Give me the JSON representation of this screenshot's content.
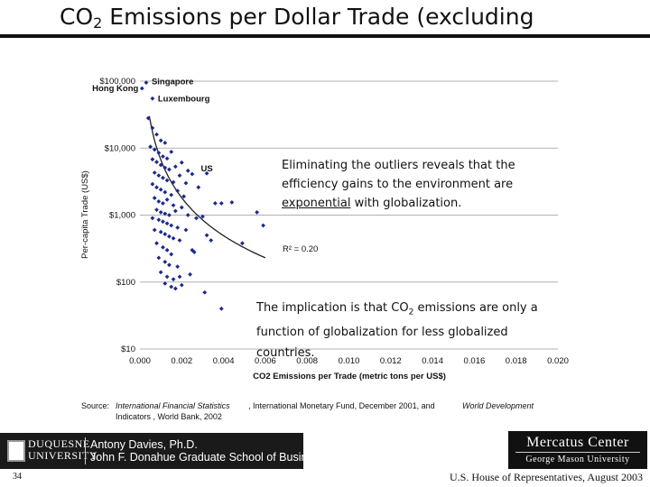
{
  "slide": {
    "title_prefix": "CO",
    "title_sub": "2",
    "title_rest": " Emissions per Dollar Trade (excluding",
    "callout1_line1": "Eliminating the outliers reveals that the",
    "callout1_line2": "efficiency gains to the environment are",
    "callout1_exp": "exponential",
    "callout1_end": " with globalization.",
    "callout2_part1": "The implication is that CO",
    "callout2_sub": "2",
    "callout2_part2": " emissions are only a",
    "callout2_line2": "function of globalization for less globalized",
    "callout2_line3": "countries.",
    "source_label": "Source:",
    "source_1": "International Financial Statistics",
    "source_2": "Indicators , World Bank, 2002",
    "source_3": ", International Monetary Fund, December 2001, and",
    "source_4": "World Development",
    "logo_left_uni1": "DUQUESNE",
    "logo_left_uni2": "UNIVERSITY",
    "logo_left_name1": "Antony Davies, Ph.D.",
    "logo_left_name2": "John F. Donahue Graduate School of Business",
    "logo_right_1": "Mercatus Center",
    "logo_right_2": "George Mason University",
    "page_number": "34",
    "footer_right": "U.S. House of Representatives, August 2003"
  },
  "chart_data": {
    "type": "scatter",
    "xlabel": "CO2 Emissions per Trade (metric tons per US$)",
    "ylabel": "Per-capita Trade (US$)",
    "x_ticks": [
      "0.000",
      "0.002",
      "0.004",
      "0.006",
      "0.008",
      "0.010",
      "0.012",
      "0.014",
      "0.016",
      "0.018",
      "0.020"
    ],
    "y_ticks": [
      "$100,000",
      "$10,000",
      "$1,000",
      "$100",
      "$10"
    ],
    "xlim": [
      0,
      0.02
    ],
    "ylim": [
      10,
      100000
    ],
    "y_scale": "log",
    "grid": "horizontal",
    "r_squared_label": "R² = 0.20",
    "annotations": [
      {
        "label": "Singapore",
        "x": 0.0003,
        "y": 95000
      },
      {
        "label": "Hong Kong",
        "x": 0.0001,
        "y": 78000
      },
      {
        "label": "Luxembourg",
        "x": 0.0006,
        "y": 55000
      },
      {
        "label": "US",
        "x": 0.0032,
        "y": 4200
      }
    ],
    "trendline": {
      "type": "power",
      "x_start": 0.00045,
      "x_end": 0.006
    },
    "points": [
      [
        0.0003,
        95000
      ],
      [
        0.0001,
        78000
      ],
      [
        0.0006,
        55000
      ],
      [
        0.0004,
        28000
      ],
      [
        0.0006,
        20000
      ],
      [
        0.0008,
        16000
      ],
      [
        0.001,
        13000
      ],
      [
        0.0012,
        12000
      ],
      [
        0.0005,
        10500
      ],
      [
        0.0007,
        9500
      ],
      [
        0.0009,
        8500
      ],
      [
        0.0011,
        7500
      ],
      [
        0.0013,
        7000
      ],
      [
        0.0015,
        8800
      ],
      [
        0.0006,
        6800
      ],
      [
        0.0008,
        6200
      ],
      [
        0.001,
        5600
      ],
      [
        0.0012,
        5100
      ],
      [
        0.0014,
        4800
      ],
      [
        0.0017,
        5300
      ],
      [
        0.002,
        6100
      ],
      [
        0.0023,
        4600
      ],
      [
        0.0007,
        4300
      ],
      [
        0.0009,
        3900
      ],
      [
        0.0011,
        3600
      ],
      [
        0.0013,
        3300
      ],
      [
        0.0016,
        3100
      ],
      [
        0.0019,
        3900
      ],
      [
        0.0022,
        3000
      ],
      [
        0.0025,
        4100
      ],
      [
        0.0028,
        2600
      ],
      [
        0.0032,
        4200
      ],
      [
        0.0006,
        2900
      ],
      [
        0.0008,
        2600
      ],
      [
        0.001,
        2400
      ],
      [
        0.0012,
        2200
      ],
      [
        0.0015,
        2000
      ],
      [
        0.0018,
        2300
      ],
      [
        0.0021,
        1900
      ],
      [
        0.0007,
        1800
      ],
      [
        0.0009,
        1600
      ],
      [
        0.0011,
        1500
      ],
      [
        0.0013,
        1700
      ],
      [
        0.0016,
        1400
      ],
      [
        0.002,
        1300
      ],
      [
        0.0036,
        1500
      ],
      [
        0.0039,
        1500
      ],
      [
        0.0044,
        1550
      ],
      [
        0.0008,
        1200
      ],
      [
        0.001,
        1100
      ],
      [
        0.0012,
        1050
      ],
      [
        0.0014,
        1000
      ],
      [
        0.0017,
        1150
      ],
      [
        0.0023,
        1000
      ],
      [
        0.0027,
        900
      ],
      [
        0.0006,
        900
      ],
      [
        0.0009,
        850
      ],
      [
        0.0011,
        800
      ],
      [
        0.0013,
        750
      ],
      [
        0.0015,
        700
      ],
      [
        0.0018,
        650
      ],
      [
        0.0022,
        600
      ],
      [
        0.003,
        950
      ],
      [
        0.0032,
        500
      ],
      [
        0.0034,
        420
      ],
      [
        0.0049,
        380
      ],
      [
        0.0056,
        1100
      ],
      [
        0.0059,
        700
      ],
      [
        0.0007,
        600
      ],
      [
        0.001,
        560
      ],
      [
        0.0012,
        520
      ],
      [
        0.0014,
        480
      ],
      [
        0.0016,
        450
      ],
      [
        0.0019,
        420
      ],
      [
        0.0025,
        300
      ],
      [
        0.0026,
        280
      ],
      [
        0.0008,
        380
      ],
      [
        0.0011,
        330
      ],
      [
        0.0013,
        300
      ],
      [
        0.0015,
        260
      ],
      [
        0.0009,
        230
      ],
      [
        0.0012,
        200
      ],
      [
        0.0014,
        180
      ],
      [
        0.0018,
        170
      ],
      [
        0.001,
        140
      ],
      [
        0.0013,
        120
      ],
      [
        0.0016,
        110
      ],
      [
        0.0019,
        120
      ],
      [
        0.0012,
        95
      ],
      [
        0.0015,
        85
      ],
      [
        0.0017,
        80
      ],
      [
        0.002,
        90
      ],
      [
        0.0024,
        130
      ],
      [
        0.0031,
        70
      ],
      [
        0.0039,
        40
      ]
    ]
  }
}
